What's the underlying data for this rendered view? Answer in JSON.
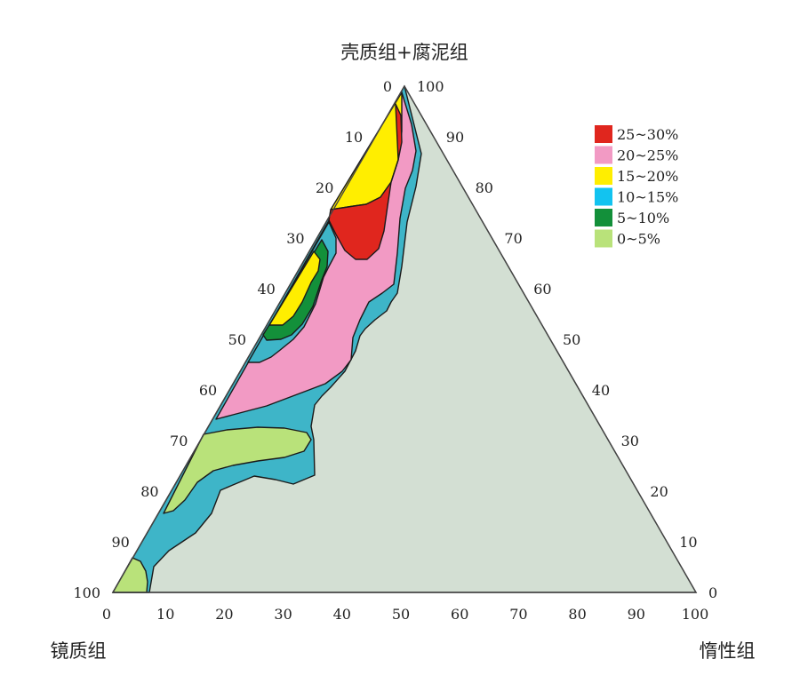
{
  "chart_data": {
    "type": "ternary-contour",
    "vertices": {
      "top": "壳质组+腐泥组",
      "left": "镜质组",
      "right": "惰性组"
    },
    "axes": {
      "left_edge_ticks": [
        "0",
        "10",
        "20",
        "30",
        "40",
        "50",
        "60",
        "70",
        "80",
        "90",
        "100"
      ],
      "right_edge_ticks": [
        "100",
        "90",
        "80",
        "70",
        "60",
        "50",
        "40",
        "30",
        "20",
        "10",
        "0"
      ],
      "bottom_edge_ticks": [
        "0",
        "10",
        "20",
        "30",
        "40",
        "50",
        "60",
        "70",
        "80",
        "90",
        "100"
      ]
    },
    "legend": [
      {
        "label": "25~30%",
        "color": "#e0261e"
      },
      {
        "label": "20~25%",
        "color": "#f29ac4"
      },
      {
        "label": "15~20%",
        "color": "#ffee00"
      },
      {
        "label": "10~15%",
        "color": "#12c3f0"
      },
      {
        "label": "5~10%",
        "color": "#13903a"
      },
      {
        "label": "0~5%",
        "color": "#b9e27a"
      }
    ],
    "background_color": "#d3dfd3",
    "band_colors": {
      "teal": "#3eb5c8",
      "pink": "#f29ac4",
      "red": "#e0261e",
      "yellow": "#ffee00",
      "green": "#13903a",
      "lightgreen": "#b9e27a"
    },
    "legend_placement": "top-right"
  }
}
